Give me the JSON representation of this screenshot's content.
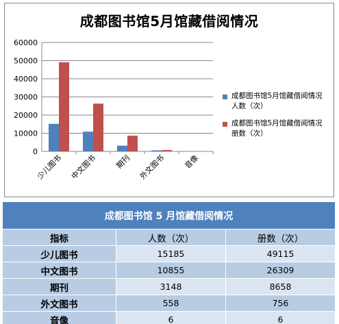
{
  "colors": {
    "series_1": "#4f81bd",
    "series_2": "#c0504d",
    "table_header": "#4f81bd",
    "table_dark": "#b8cce4",
    "table_light": "#dbe5f1"
  },
  "chart_data": {
    "type": "bar",
    "title": "成都图书馆5月馆藏借阅情况",
    "categories": [
      "少儿图书",
      "中文图书",
      "期刊",
      "外文图书",
      "音像"
    ],
    "series": [
      {
        "name": "成都图书馆5月馆藏借阅情况 人数（次）",
        "values": [
          15185,
          10855,
          3148,
          558,
          6
        ]
      },
      {
        "name": "成都图书馆5月馆藏借阅情况 册数（次）",
        "values": [
          49115,
          26309,
          8658,
          756,
          6
        ]
      }
    ],
    "ylim": [
      0,
      60000
    ],
    "yticks": [
      "0",
      "10000",
      "20000",
      "30000",
      "40000",
      "50000",
      "60000"
    ],
    "grid": true,
    "legend": "right"
  },
  "table": {
    "title": "成都图书馆 5 月馆藏借阅情况",
    "headers": [
      "指标",
      "人数（次）",
      "册数（次）"
    ],
    "rows": [
      {
        "label": "少儿图书",
        "persons": "15185",
        "volumes": "49115"
      },
      {
        "label": "中文图书",
        "persons": "10855",
        "volumes": "26309"
      },
      {
        "label": "期刊",
        "persons": "3148",
        "volumes": "8658"
      },
      {
        "label": "外文图书",
        "persons": "558",
        "volumes": "756"
      },
      {
        "label": "音像",
        "persons": "6",
        "volumes": "6"
      }
    ]
  }
}
